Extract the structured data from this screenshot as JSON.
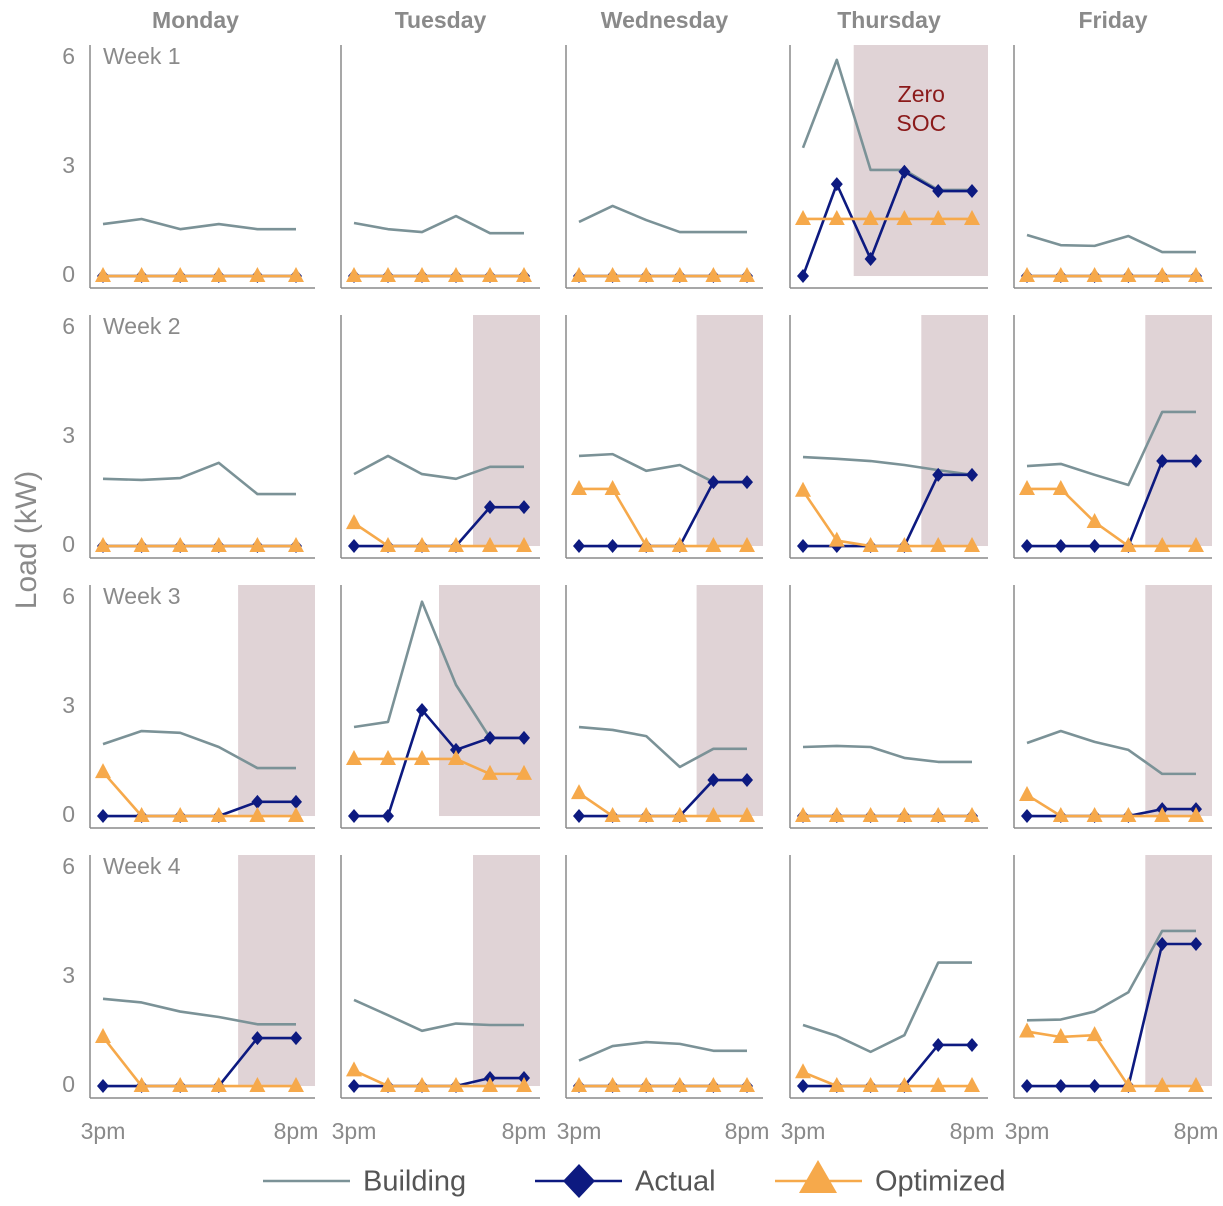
{
  "chart_data": {
    "type": "line",
    "ylabel": "Load (kW)",
    "columns": [
      "Monday",
      "Tuesday",
      "Wednesday",
      "Thursday",
      "Friday"
    ],
    "rows": [
      "Week 1",
      "Week 2",
      "Week 3",
      "Week 4"
    ],
    "categories": [
      "3pm",
      null,
      null,
      null,
      null,
      "8pm"
    ],
    "ylim": [
      -0.33,
      6.36
    ],
    "yticks": [
      0,
      3,
      6
    ],
    "shade_color": "#e0d3d6",
    "annotation_color": "#8b1a1a",
    "series": [
      {
        "name": "Building",
        "color": "#7b9297",
        "marker": "none"
      },
      {
        "name": "Actual",
        "color": "#0d1a80",
        "marker": "diamond"
      },
      {
        "name": "Optimized",
        "color": "#f6a94b",
        "marker": "triangle"
      }
    ],
    "panels": [
      [
        {
          "values": [
            [
              1.43,
              1.57,
              1.29,
              1.43,
              1.29,
              1.29
            ],
            [
              0,
              0,
              0,
              0,
              0,
              0
            ],
            [
              0,
              0,
              0,
              0,
              0,
              0
            ]
          ]
        },
        {
          "values": [
            [
              1.46,
              1.29,
              1.21,
              1.65,
              1.18,
              1.18
            ],
            [
              0,
              0,
              0,
              0,
              0,
              0
            ],
            [
              0,
              0,
              0,
              0,
              0,
              0
            ]
          ]
        },
        {
          "values": [
            [
              1.49,
              1.93,
              1.54,
              1.21,
              1.21,
              1.21
            ],
            [
              0,
              0,
              0,
              0,
              0,
              0
            ],
            [
              0,
              0,
              0,
              0,
              0,
              0
            ]
          ]
        },
        {
          "values": [
            [
              3.53,
              5.95,
              2.92,
              2.92,
              2.37,
              2.37
            ],
            [
              0,
              2.53,
              0.47,
              2.87,
              2.34,
              2.34
            ],
            [
              1.57,
              1.57,
              1.57,
              1.57,
              1.57,
              1.57
            ]
          ],
          "shade": [
            1.5,
            5.5
          ],
          "annotation": [
            "Zero",
            "SOC"
          ]
        },
        {
          "values": [
            [
              1.13,
              0.85,
              0.83,
              1.1,
              0.66,
              0.66
            ],
            [
              0,
              0,
              0,
              0,
              0,
              0
            ],
            [
              0,
              0,
              0,
              0,
              0,
              0
            ]
          ]
        }
      ],
      [
        {
          "values": [
            [
              1.85,
              1.82,
              1.87,
              2.29,
              1.43,
              1.43
            ],
            [
              0,
              0,
              0,
              0,
              0,
              0
            ],
            [
              0,
              0,
              0,
              0,
              0,
              0
            ]
          ]
        },
        {
          "values": [
            [
              1.98,
              2.48,
              1.98,
              1.85,
              2.18,
              2.18
            ],
            [
              0,
              0,
              0,
              0,
              1.07,
              1.07
            ],
            [
              0.63,
              0,
              0,
              0,
              0,
              0
            ]
          ],
          "shade": [
            3.5,
            5.5
          ]
        },
        {
          "values": [
            [
              2.48,
              2.53,
              2.07,
              2.23,
              1.76,
              1.76
            ],
            [
              0,
              0,
              0,
              0,
              1.76,
              1.76
            ],
            [
              1.57,
              1.57,
              0,
              0,
              0,
              0
            ]
          ],
          "shade": [
            3.5,
            5.5
          ]
        },
        {
          "values": [
            [
              2.45,
              2.4,
              2.34,
              2.23,
              2.09,
              1.96
            ],
            [
              0,
              0,
              0,
              0,
              1.96,
              1.96
            ],
            [
              1.52,
              0.15,
              0,
              0,
              0,
              0
            ]
          ],
          "shade": [
            3.5,
            5.5
          ]
        },
        {
          "values": [
            [
              2.2,
              2.26,
              1.96,
              1.68,
              3.69,
              3.69
            ],
            [
              0,
              0,
              0,
              0,
              2.34,
              2.34
            ],
            [
              1.57,
              1.57,
              0.66,
              0,
              0,
              0
            ]
          ],
          "shade": [
            3.5,
            5.5
          ]
        }
      ],
      [
        {
          "values": [
            [
              1.98,
              2.34,
              2.29,
              1.9,
              1.32,
              1.32
            ],
            [
              0,
              0,
              0,
              0,
              0.39,
              0.39
            ],
            [
              1.21,
              0,
              0,
              0,
              0,
              0
            ]
          ],
          "shade": [
            3.5,
            5.5
          ]
        },
        {
          "values": [
            [
              2.45,
              2.59,
              5.9,
              3.61,
              2.15,
              2.15
            ],
            [
              0,
              0,
              2.92,
              1.82,
              2.15,
              2.15
            ],
            [
              1.57,
              1.57,
              1.57,
              1.57,
              1.16,
              1.16
            ]
          ],
          "shade": [
            2.5,
            5.5
          ]
        },
        {
          "values": [
            [
              2.45,
              2.37,
              2.2,
              1.35,
              1.85,
              1.85
            ],
            [
              0,
              0,
              0,
              0,
              0.99,
              0.99
            ],
            [
              0.63,
              0,
              0,
              0,
              0,
              0
            ]
          ],
          "shade": [
            3.5,
            5.5
          ]
        },
        {
          "values": [
            [
              1.9,
              1.93,
              1.9,
              1.6,
              1.49,
              1.49
            ],
            [
              0,
              0,
              0,
              0,
              0,
              0
            ],
            [
              0,
              0,
              0,
              0,
              0,
              0
            ]
          ]
        },
        {
          "values": [
            [
              2.01,
              2.34,
              2.04,
              1.82,
              1.16,
              1.16
            ],
            [
              0,
              0,
              0,
              0,
              0.19,
              0.19
            ],
            [
              0.58,
              0,
              0,
              0,
              0,
              0
            ]
          ],
          "shade": [
            3.5,
            5.5
          ]
        }
      ],
      [
        {
          "values": [
            [
              2.4,
              2.3,
              2.05,
              1.9,
              1.7,
              1.7
            ],
            [
              0,
              0,
              0,
              0,
              1.32,
              1.32
            ],
            [
              1.35,
              0,
              0,
              0,
              0,
              0
            ]
          ],
          "shade": [
            3.5,
            5.5
          ]
        },
        {
          "values": [
            [
              2.37,
              1.95,
              1.52,
              1.72,
              1.68,
              1.68
            ],
            [
              0,
              0,
              0,
              0,
              0.22,
              0.22
            ],
            [
              0.43,
              0,
              0,
              0,
              0,
              0
            ]
          ],
          "shade": [
            3.5,
            5.5
          ]
        },
        {
          "values": [
            [
              0.7,
              1.1,
              1.21,
              1.16,
              0.97,
              0.97
            ],
            [
              0,
              0,
              0,
              0,
              0,
              0
            ],
            [
              0,
              0,
              0,
              0,
              0,
              0
            ]
          ]
        },
        {
          "values": [
            [
              1.68,
              1.38,
              0.94,
              1.4,
              3.4,
              3.4
            ],
            [
              0,
              0,
              0,
              0,
              1.13,
              1.13
            ],
            [
              0.38,
              0,
              0,
              0,
              0,
              0
            ]
          ]
        },
        {
          "values": [
            [
              1.81,
              1.83,
              2.05,
              2.58,
              4.27,
              4.27
            ],
            [
              0,
              0,
              0,
              0,
              3.91,
              3.91
            ],
            [
              1.5,
              1.35,
              1.4,
              0,
              0,
              0
            ]
          ],
          "shade": [
            3.5,
            5.5
          ]
        }
      ]
    ]
  }
}
